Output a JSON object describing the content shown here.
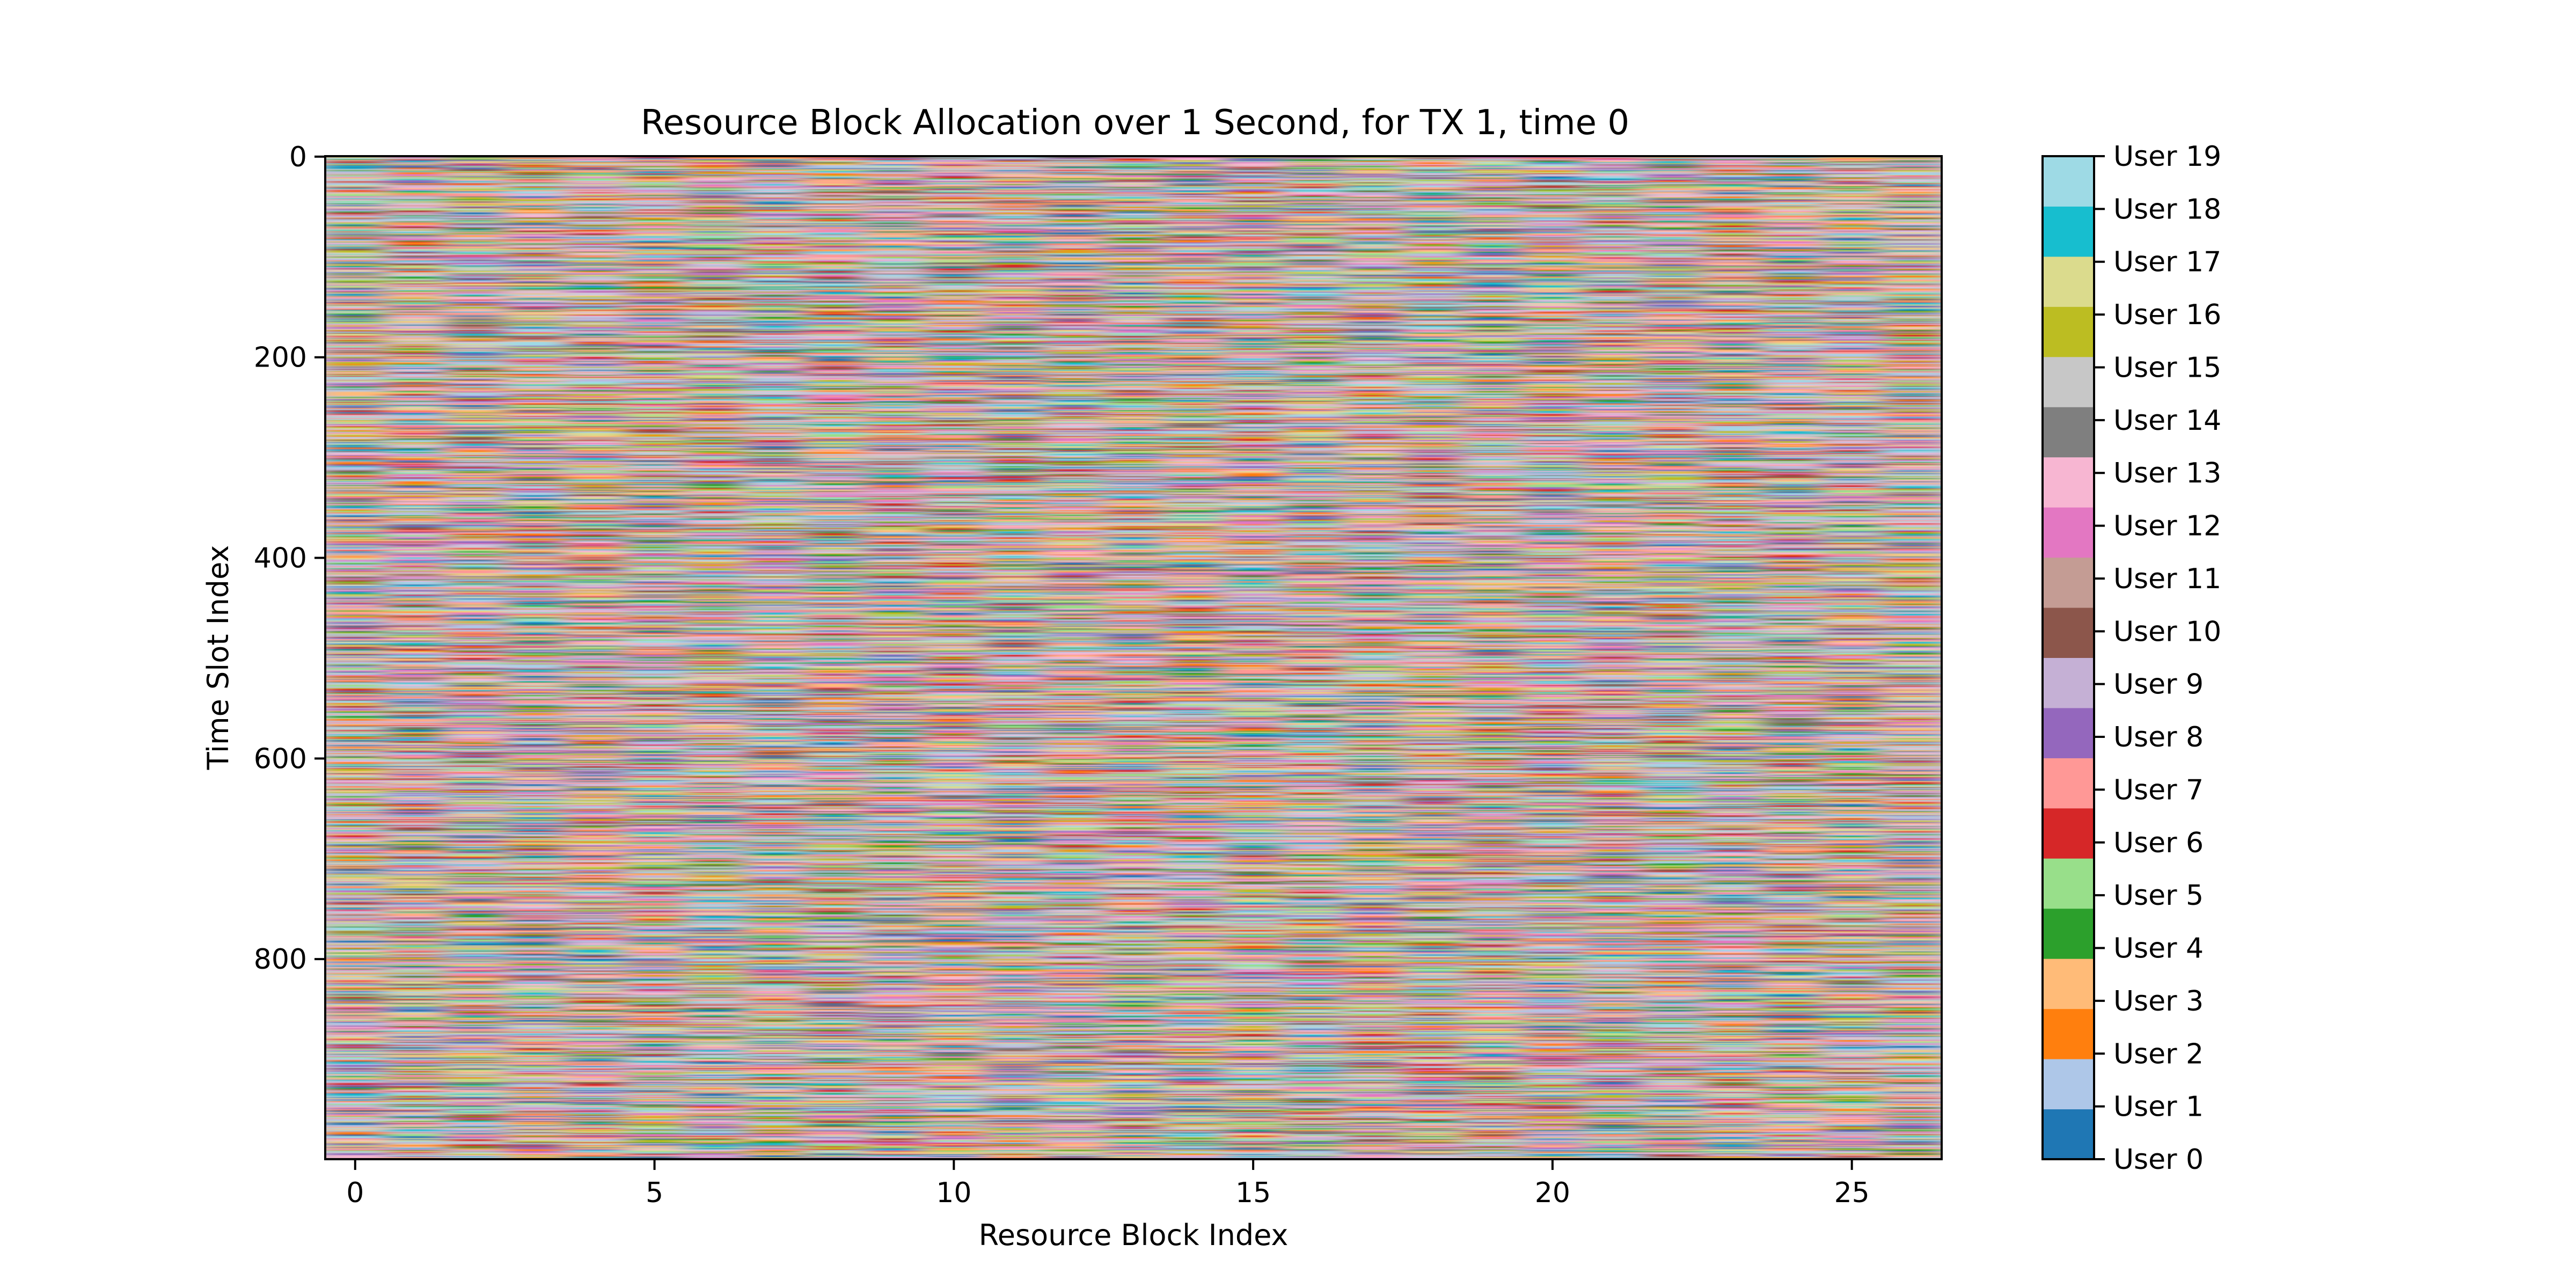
{
  "chart_data": {
    "type": "heatmap",
    "title": "Resource Block Allocation over 1 Second, for TX 1, time 0",
    "xlabel": "Resource Block Index",
    "ylabel": "Time Slot Index",
    "xlim": [
      -0.5,
      26.5
    ],
    "ylim": [
      999.5,
      -0.5
    ],
    "y_inverted": true,
    "x_ticks": [
      0,
      5,
      10,
      15,
      20,
      25
    ],
    "y_ticks": [
      0,
      200,
      400,
      600,
      800
    ],
    "n_resource_blocks": 27,
    "n_time_slots": 1000,
    "interpolation": "smooth",
    "grid": false,
    "colorbar": {
      "labels": [
        "User 0",
        "User 1",
        "User 2",
        "User 3",
        "User 4",
        "User 5",
        "User 6",
        "User 7",
        "User 8",
        "User 9",
        "User 10",
        "User 11",
        "User 12",
        "User 13",
        "User 14",
        "User 15",
        "User 16",
        "User 17",
        "User 18",
        "User 19"
      ],
      "colors": [
        "#1f77b4",
        "#aec7e8",
        "#ff7f0e",
        "#ffbb78",
        "#2ca02c",
        "#98df8a",
        "#d62728",
        "#ff9896",
        "#9467bd",
        "#c5b0d5",
        "#8c564b",
        "#c49c94",
        "#e377c2",
        "#f7b6d2",
        "#7f7f7f",
        "#c7c7c7",
        "#bcbd22",
        "#dbdb8d",
        "#17becf",
        "#9edae5"
      ]
    }
  }
}
